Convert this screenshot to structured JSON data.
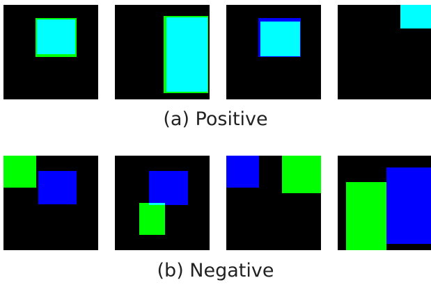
{
  "colors": {
    "background": "#000000",
    "cyan": "#00ffff",
    "green": "#00ff00",
    "blue": "#0000ff"
  },
  "rows": [
    {
      "caption": "(a) Positive",
      "panels": [
        {
          "name": "positive-panel-1"
        },
        {
          "name": "positive-panel-2"
        },
        {
          "name": "positive-panel-3"
        },
        {
          "name": "positive-panel-4"
        }
      ]
    },
    {
      "caption": "(b) Negative",
      "panels": [
        {
          "name": "negative-panel-1"
        },
        {
          "name": "negative-panel-2"
        },
        {
          "name": "negative-panel-3"
        },
        {
          "name": "negative-panel-4"
        }
      ]
    }
  ]
}
